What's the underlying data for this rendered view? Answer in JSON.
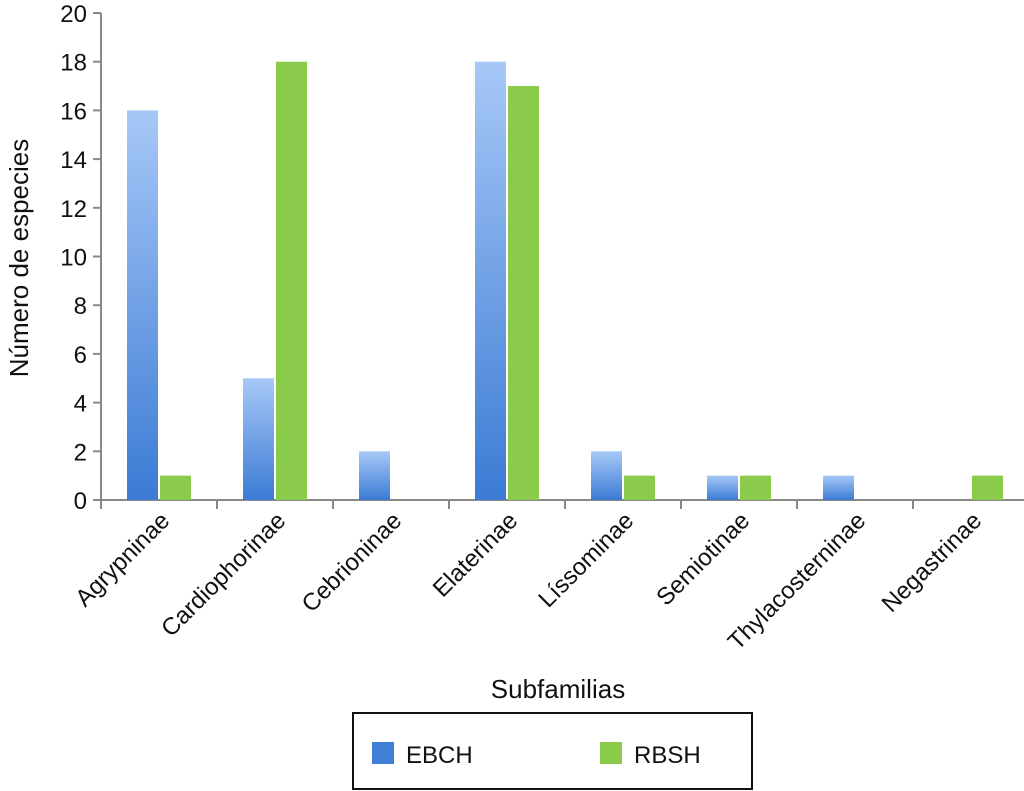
{
  "chart_data": {
    "type": "bar",
    "title": "",
    "xlabel": "Subfamilias",
    "ylabel": "Número de especies",
    "ylim": [
      0,
      20
    ],
    "yticks": [
      0,
      2,
      4,
      6,
      8,
      10,
      12,
      14,
      16,
      18,
      20
    ],
    "grid": false,
    "legend_placement": "bottom",
    "categories": [
      "Agrypninae",
      "Cardiophorinae",
      "Cebrioninae",
      "Elaterinae",
      "Líssominae",
      "Semiotinae",
      "Thylacosterninae",
      "Negastrinae"
    ],
    "series": [
      {
        "name": "EBCH",
        "color": "#3f7fd6",
        "values": [
          16,
          5,
          2,
          18,
          2,
          1,
          1,
          0
        ]
      },
      {
        "name": "RBSH",
        "color": "#8acb4c",
        "values": [
          1,
          18,
          0,
          17,
          1,
          1,
          0,
          1
        ]
      }
    ]
  }
}
